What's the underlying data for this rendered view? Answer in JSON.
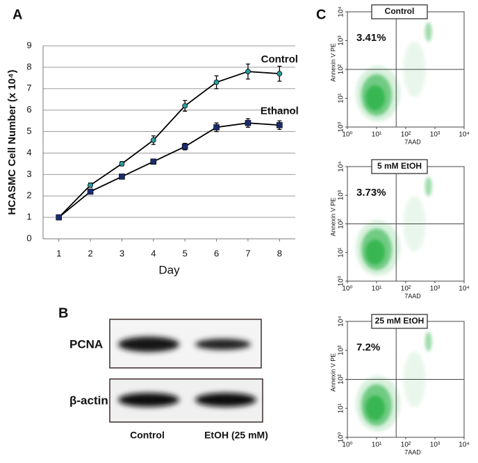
{
  "chart_data": [
    {
      "type": "line",
      "panel": "A",
      "xlabel": "Day",
      "ylabel": "HCASMC Cell Number (x 10⁴)",
      "x": [
        1,
        2,
        3,
        4,
        5,
        6,
        7,
        8
      ],
      "xlim": [
        0.5,
        8.5
      ],
      "xticks": [
        1,
        2,
        3,
        4,
        5,
        6,
        7,
        8
      ],
      "ylim": [
        0,
        9
      ],
      "yticks": [
        0,
        1,
        2,
        3,
        4,
        5,
        6,
        7,
        8,
        9
      ],
      "grid": true,
      "series": [
        {
          "name": "Control",
          "color": "#2a9d9d",
          "line_color": "#000000",
          "marker": "circle",
          "values": [
            1,
            2.5,
            3.5,
            4.6,
            6.2,
            7.3,
            7.8,
            7.7
          ],
          "errors": [
            0.05,
            0.1,
            0.1,
            0.2,
            0.25,
            0.3,
            0.35,
            0.35
          ]
        },
        {
          "name": "Ethanol",
          "color": "#1c2a6e",
          "line_color": "#000000",
          "marker": "square",
          "values": [
            1,
            2.2,
            2.9,
            3.6,
            4.3,
            5.2,
            5.4,
            5.3
          ],
          "errors": [
            0.05,
            0.1,
            0.1,
            0.12,
            0.15,
            0.2,
            0.2,
            0.2
          ]
        }
      ]
    },
    {
      "type": "scatter",
      "panel": "C",
      "title": "Control",
      "annotation": "3.41%",
      "xlabel": "7AAD",
      "ylabel": "Annexin V PE",
      "log_scale": true,
      "xlim": [
        1,
        10000
      ],
      "ylim": [
        1,
        10000
      ],
      "xticks": [
        {
          "value": 1,
          "label": "10⁰"
        },
        {
          "value": 10,
          "label": "10¹"
        },
        {
          "value": 100,
          "label": "10²"
        },
        {
          "value": 1000,
          "label": "10³"
        },
        {
          "value": 10000,
          "label": "10⁴"
        }
      ],
      "yticks": [
        {
          "value": 1,
          "label": "10⁰"
        },
        {
          "value": 10,
          "label": "10¹"
        },
        {
          "value": 100,
          "label": "10²"
        },
        {
          "value": 1000,
          "label": "10³"
        },
        {
          "value": 10000,
          "label": "10⁴"
        }
      ],
      "gate": [
        47,
        100
      ],
      "color": "#2db34a"
    },
    {
      "type": "scatter",
      "title": "5 mM EtOH",
      "annotation": "3.73%",
      "xlabel": "7AAD",
      "ylabel": "Annexin V PE",
      "log_scale": true,
      "xlim": [
        1,
        10000
      ],
      "ylim": [
        1,
        10000
      ],
      "xticks": [
        {
          "value": 1,
          "label": "10⁰"
        },
        {
          "value": 10,
          "label": "10¹"
        },
        {
          "value": 100,
          "label": "10²"
        },
        {
          "value": 1000,
          "label": "10³"
        },
        {
          "value": 10000,
          "label": "10⁴"
        }
      ],
      "yticks": [
        {
          "value": 1,
          "label": "10⁰"
        },
        {
          "value": 10,
          "label": "10¹"
        },
        {
          "value": 100,
          "label": "10²"
        },
        {
          "value": 1000,
          "label": "10³"
        },
        {
          "value": 10000,
          "label": "10⁴"
        }
      ],
      "gate": [
        47,
        100
      ],
      "color": "#2db34a"
    },
    {
      "type": "scatter",
      "title": "25 mM EtOH",
      "annotation": "7.2%",
      "xlabel": "7AAD",
      "ylabel": "Annexin V PE",
      "log_scale": true,
      "xlim": [
        1,
        10000
      ],
      "ylim": [
        1,
        10000
      ],
      "xticks": [
        {
          "value": 1,
          "label": "10⁰"
        },
        {
          "value": 10,
          "label": "10¹"
        },
        {
          "value": 100,
          "label": "10²"
        },
        {
          "value": 1000,
          "label": "10³"
        },
        {
          "value": 10000,
          "label": "10⁴"
        }
      ],
      "yticks": [
        {
          "value": 1,
          "label": "10⁰"
        },
        {
          "value": 10,
          "label": "10¹"
        },
        {
          "value": 100,
          "label": "10²"
        },
        {
          "value": 1000,
          "label": "10³"
        },
        {
          "value": 10000,
          "label": "10⁴"
        }
      ],
      "gate": [
        47,
        100
      ],
      "color": "#2db34a"
    }
  ],
  "blot": {
    "panel": "B",
    "rows": [
      "PCNA",
      "β-actin"
    ],
    "lanes": [
      "Control",
      "EtOH (25 mM)"
    ]
  }
}
